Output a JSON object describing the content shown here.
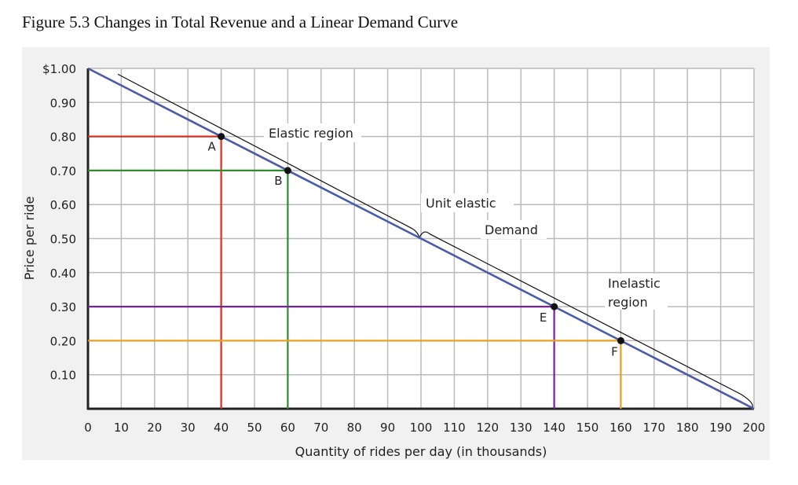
{
  "chart_data": {
    "type": "line",
    "title": "Figure 5.3 Changes in Total Revenue and a Linear Demand Curve",
    "xlabel": "Quantity of rides per day (in thousands)",
    "ylabel": "Price per ride",
    "xlim": [
      0,
      200
    ],
    "ylim": [
      0,
      1.0
    ],
    "x_ticks": [
      0,
      10,
      20,
      30,
      40,
      50,
      60,
      70,
      80,
      90,
      100,
      110,
      120,
      130,
      140,
      150,
      160,
      170,
      180,
      190,
      200
    ],
    "y_ticks": [
      {
        "value": 1.0,
        "label": "$1.00"
      },
      {
        "value": 0.9,
        "label": "0.90"
      },
      {
        "value": 0.8,
        "label": "0.80"
      },
      {
        "value": 0.7,
        "label": "0.70"
      },
      {
        "value": 0.6,
        "label": "0.60"
      },
      {
        "value": 0.5,
        "label": "0.50"
      },
      {
        "value": 0.4,
        "label": "0.40"
      },
      {
        "value": 0.3,
        "label": "0.30"
      },
      {
        "value": 0.2,
        "label": "0.20"
      },
      {
        "value": 0.1,
        "label": "0.10"
      }
    ],
    "grid": true,
    "series": [
      {
        "name": "Demand",
        "color": "#4a5ba8",
        "x": [
          0,
          200
        ],
        "y": [
          1.0,
          0.0
        ]
      }
    ],
    "points": [
      {
        "label": "A",
        "x": 40,
        "y": 0.8,
        "color": "#d9301e"
      },
      {
        "label": "B",
        "x": 60,
        "y": 0.7,
        "color": "#2e8b2e"
      },
      {
        "label": "E",
        "x": 140,
        "y": 0.3,
        "color": "#7a1fa0"
      },
      {
        "label": "F",
        "x": 160,
        "y": 0.2,
        "color": "#e8a020"
      }
    ],
    "annotations": [
      "Elastic region",
      "Unit elastic",
      "Inelastic region"
    ],
    "annotation_lines": {
      "inelastic": [
        "Inelastic",
        "region"
      ]
    }
  }
}
